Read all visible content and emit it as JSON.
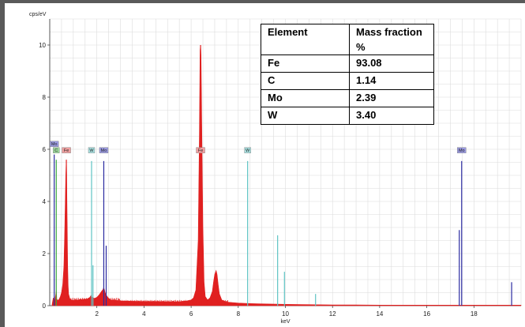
{
  "chart_data": {
    "type": "line",
    "title": "",
    "xlabel": "keV",
    "ylabel": "cps/eV",
    "xlim": [
      0,
      20
    ],
    "ylim": [
      0,
      11
    ],
    "x_ticks": [
      2,
      4,
      6,
      8,
      10,
      12,
      14,
      16,
      18
    ],
    "y_ticks": [
      0,
      2,
      4,
      6,
      8,
      10
    ],
    "grid": true,
    "series": [
      {
        "name": "spectrum",
        "color": "#e02020",
        "x": [
          0.1,
          0.15,
          0.2,
          0.25,
          0.28,
          0.3,
          0.35,
          0.4,
          0.45,
          0.5,
          0.55,
          0.6,
          0.63,
          0.66,
          0.68,
          0.7,
          0.705,
          0.71,
          0.72,
          0.74,
          0.76,
          0.78,
          0.8,
          0.85,
          0.9,
          1.0,
          1.2,
          1.4,
          1.6,
          1.7,
          1.76,
          1.8,
          1.9,
          2.0,
          2.1,
          2.2,
          2.26,
          2.29,
          2.32,
          2.35,
          2.4,
          2.5,
          2.6,
          2.8,
          3.0,
          3.5,
          4.0,
          4.5,
          5.0,
          5.5,
          5.8,
          6.0,
          6.1,
          6.2,
          6.3,
          6.35,
          6.38,
          6.4,
          6.42,
          6.45,
          6.5,
          6.55,
          6.6,
          6.7,
          6.8,
          6.9,
          6.95,
          7.0,
          7.06,
          7.1,
          7.15,
          7.2,
          7.3,
          7.5,
          8.0,
          8.5,
          9.0,
          10.0,
          11.0,
          12.0,
          13.0,
          14.0,
          16.0,
          18.0,
          20.0
        ],
        "y": [
          0.05,
          0.3,
          0.15,
          0.4,
          0.6,
          0.25,
          0.2,
          0.25,
          0.35,
          0.5,
          0.8,
          1.5,
          2.6,
          4.0,
          5.0,
          5.5,
          5.6,
          5.45,
          4.8,
          3.2,
          1.6,
          0.8,
          0.45,
          0.28,
          0.22,
          0.2,
          0.22,
          0.24,
          0.26,
          0.32,
          0.4,
          0.32,
          0.28,
          0.32,
          0.42,
          0.55,
          0.62,
          0.7,
          0.62,
          0.5,
          0.4,
          0.28,
          0.22,
          0.2,
          0.18,
          0.17,
          0.16,
          0.16,
          0.15,
          0.15,
          0.18,
          0.22,
          0.3,
          0.6,
          2.5,
          6.5,
          9.8,
          10.0,
          9.6,
          7.0,
          3.0,
          0.9,
          0.35,
          0.22,
          0.3,
          0.55,
          0.9,
          1.2,
          1.35,
          1.2,
          0.8,
          0.45,
          0.22,
          0.14,
          0.1,
          0.08,
          0.07,
          0.05,
          0.04,
          0.03,
          0.03,
          0.02,
          0.02,
          0.02,
          0.02
        ]
      }
    ],
    "element_lines": [
      {
        "element": "C",
        "energy": 0.277,
        "color": "#3ca83c",
        "height": 5.6
      },
      {
        "element": "Mo",
        "energy": 0.19,
        "color": "#2a2aa0",
        "height": 5.8
      },
      {
        "element": "Fe",
        "energy": 0.705,
        "color": "#e02020",
        "height": 5.6
      },
      {
        "element": "W",
        "energy": 1.775,
        "color": "#5fc4c4",
        "height": 5.55
      },
      {
        "element": "W",
        "energy": 1.835,
        "color": "#5fc4c4",
        "height": 1.55
      },
      {
        "element": "Mo",
        "energy": 2.293,
        "color": "#2a2aa0",
        "height": 5.55
      },
      {
        "element": "Mo",
        "energy": 2.395,
        "color": "#2a2aa0",
        "height": 2.3
      },
      {
        "element": "Fe",
        "energy": 6.4,
        "color": "#e02020",
        "height": 10.0
      },
      {
        "element": "W",
        "energy": 8.397,
        "color": "#5fc4c4",
        "height": 5.55
      },
      {
        "element": "W",
        "energy": 9.67,
        "color": "#5fc4c4",
        "height": 2.7
      },
      {
        "element": "W",
        "energy": 9.96,
        "color": "#5fc4c4",
        "height": 1.3
      },
      {
        "element": "W",
        "energy": 11.28,
        "color": "#5fc4c4",
        "height": 0.45
      },
      {
        "element": "Mo",
        "energy": 17.48,
        "color": "#2a2aa0",
        "height": 5.55
      },
      {
        "element": "Mo",
        "energy": 17.38,
        "color": "#2a2aa0",
        "height": 2.9
      },
      {
        "element": "Mo",
        "energy": 19.6,
        "color": "#2a2aa0",
        "height": 0.9
      }
    ],
    "element_tags": [
      {
        "label": "Mo",
        "energy": 0.19,
        "row": 0,
        "bg": "#9a9ae0"
      },
      {
        "label": "C",
        "energy": 0.277,
        "row": 1,
        "bg": "#9ad49a"
      },
      {
        "label": "Fe",
        "energy": 0.705,
        "row": 1,
        "bg": "#f0a0a0"
      },
      {
        "label": "W",
        "energy": 1.775,
        "row": 1,
        "bg": "#a8e0e0"
      },
      {
        "label": "Mo",
        "energy": 2.293,
        "row": 1,
        "bg": "#9a9ae0"
      },
      {
        "label": "Fe",
        "energy": 6.4,
        "row": 1,
        "bg": "#f0a0a0"
      },
      {
        "label": "W",
        "energy": 8.397,
        "row": 1,
        "bg": "#a8e0e0"
      },
      {
        "label": "Mo",
        "energy": 17.48,
        "row": 1,
        "bg": "#9a9ae0"
      }
    ]
  },
  "table": {
    "headers": [
      "Element",
      "Mass fraction %"
    ],
    "rows": [
      [
        "Fe",
        "93.08"
      ],
      [
        "C",
        "1.14"
      ],
      [
        "Mo",
        "2.39"
      ],
      [
        "W",
        "3.40"
      ]
    ]
  }
}
